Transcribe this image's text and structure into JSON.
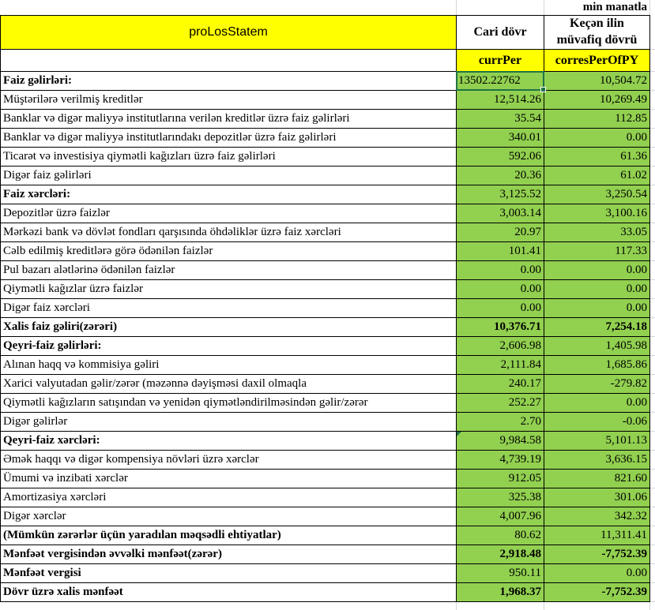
{
  "meta": {
    "units_label": "min manatla"
  },
  "colors": {
    "header_fill": "#ffff00",
    "value_fill": "#92d050",
    "selection_border": "#217346",
    "cell_border": "#000000",
    "gridline": "#d6d6d6"
  },
  "table": {
    "title": "proLosStatem",
    "col_headers": [
      "Cari dövr",
      "Keçən ilin müvafiq dövrü"
    ],
    "field_headers": [
      "currPer",
      "corresPerOfPY"
    ],
    "rows": [
      {
        "label": "Faiz gəlirləri:",
        "curr": "13502.22762",
        "prev": "10,504.72",
        "label_bold": true,
        "selected": true,
        "curr_align": "left"
      },
      {
        "label": "Müştərilərə verilmiş kreditlər",
        "curr": "12,514.26",
        "prev": "10,269.49"
      },
      {
        "label": "Banklar və digər maliyyə institutlarına verilən kreditlər üzrə faiz gəlirləri",
        "curr": "35.54",
        "prev": "112.85"
      },
      {
        "label": "Banklar və digər maliyyə institutlarındakı depozitlər üzrə faiz gəlirləri",
        "curr": "340.01",
        "prev": "0.00"
      },
      {
        "label": "Ticarət və investisiya qiymətli kağızları üzrə faiz gəlirləri",
        "curr": "592.06",
        "prev": "61.36"
      },
      {
        "label": "Digər faiz gəlirləri",
        "curr": "20.36",
        "prev": "61.02"
      },
      {
        "label": "Faiz xərcləri:",
        "curr": "3,125.52",
        "prev": "3,250.54",
        "label_bold": true
      },
      {
        "label": "Depozitlər üzrə faizlər",
        "curr": "3,003.14",
        "prev": "3,100.16"
      },
      {
        "label": "Mərkəzi bank və dövlət fondları qarşısında öhdəliklər üzrə faiz xərcləri",
        "curr": "20.97",
        "prev": "33.05"
      },
      {
        "label": "Cəlb edilmiş kreditlərə görə ödənilən faizlər",
        "curr": "101.41",
        "prev": "117.33"
      },
      {
        "label": "Pul bazarı alətlərinə ödənilən faizlər",
        "curr": "0.00",
        "prev": "0.00"
      },
      {
        "label": "Qiymətli kağızlar üzrə faizlər",
        "curr": "0.00",
        "prev": "0.00"
      },
      {
        "label": "Digər faiz xərcləri",
        "curr": "0.00",
        "prev": "0.00"
      },
      {
        "label": "Xalis faiz gəliri(zərəri)",
        "curr": "10,376.71",
        "prev": "7,254.18",
        "label_bold": true,
        "values_bold": true
      },
      {
        "label": "Qeyri-faiz gəlirləri:",
        "curr": "2,606.98",
        "prev": "1,405.98",
        "label_bold": true
      },
      {
        "label": "Alınan haqq və kommisiya gəliri",
        "curr": "2,111.84",
        "prev": "1,685.86"
      },
      {
        "label": "Xarici valyutadan gəlir/zərər (məzənnə dəyişməsi daxil olmaqla",
        "curr": "240.17",
        "prev": "-279.82"
      },
      {
        "label": "Qiymətli kağızların satışından və yenidən qiymətləndirilməsindən gəlir/zərər",
        "curr": "252.27",
        "prev": "0.00"
      },
      {
        "label": "Digər gəlirlər",
        "curr": "2.70",
        "prev": "-0.06"
      },
      {
        "label": "Qeyri-faiz xərcləri:",
        "curr": "9,984.58",
        "prev": "5,101.13",
        "label_bold": true,
        "error_indicator": true
      },
      {
        "label": "Əmək haqqı və digər kompensiya növləri üzrə xərclər",
        "curr": "4,739.19",
        "prev": "3,636.15"
      },
      {
        "label": "Ümumi və inzibati xərclər",
        "curr": "912.05",
        "prev": "821.60"
      },
      {
        "label": "Amortizasiya xərcləri",
        "curr": "325.38",
        "prev": "301.06"
      },
      {
        "label": "Digər xərclər",
        "curr": "4,007.96",
        "prev": "342.32"
      },
      {
        "label": "(Mümkün zərərlər üçün yaradılan məqsədli ehtiyatlar)",
        "curr": "80.62",
        "prev": "11,311.41",
        "label_bold": true
      },
      {
        "label": "Mənfəət vergisindən əvvəlki mənfəət(zərər)",
        "curr": "2,918.48",
        "prev": "-7,752.39",
        "label_bold": true,
        "values_bold": true
      },
      {
        "label": "Mənfəət vergisi",
        "curr": "950.11",
        "prev": "0.00",
        "label_bold": true
      },
      {
        "label": "Dövr üzrə xalis mənfəət",
        "curr": "1,968.37",
        "prev": "-7,752.39",
        "label_bold": true,
        "values_bold": true
      }
    ]
  }
}
